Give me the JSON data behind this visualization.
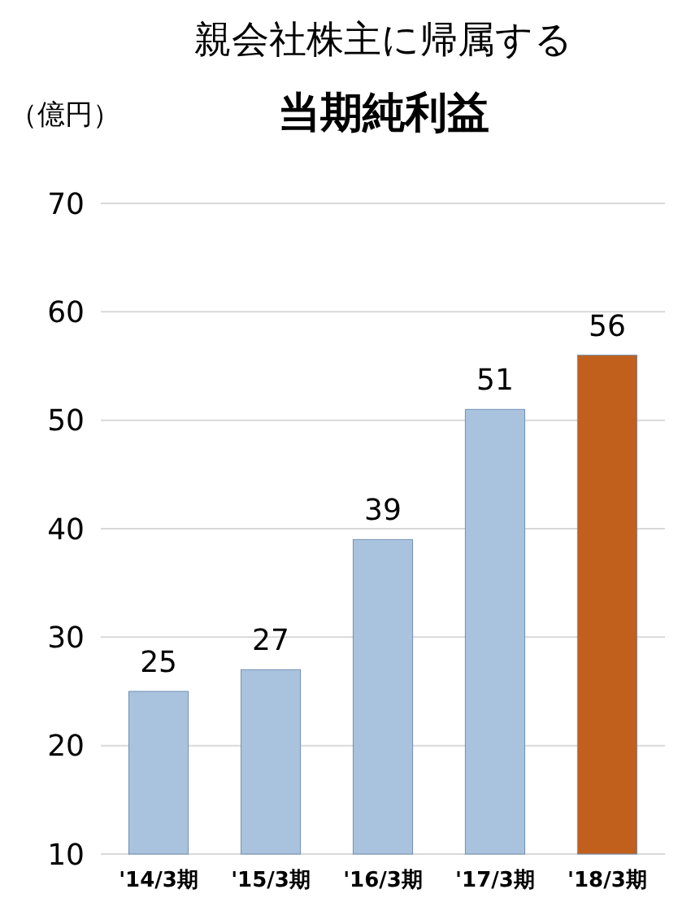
{
  "chart_data": {
    "type": "bar",
    "title": "親会社株主に帰属する",
    "subtitle": "当期純利益",
    "ylabel": "（億円）",
    "categories": [
      "'14/3期",
      "'15/3期",
      "'16/3期",
      "'17/3期",
      "'18/3期"
    ],
    "values": [
      25,
      27,
      39,
      51,
      56
    ],
    "colors": [
      "#a9c3df",
      "#a9c3df",
      "#a9c3df",
      "#a9c3df",
      "#c0601c"
    ],
    "ylim": [
      10,
      70
    ],
    "yticks": [
      10,
      20,
      30,
      40,
      50,
      60,
      70
    ],
    "grid": "y",
    "data_labels": true
  }
}
